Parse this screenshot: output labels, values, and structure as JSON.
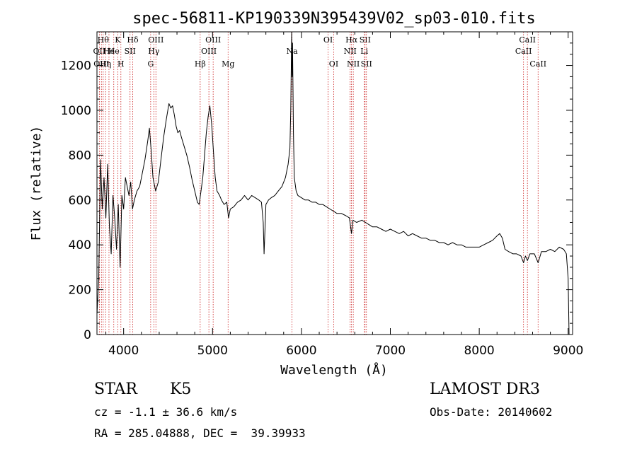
{
  "chart_data": {
    "type": "line",
    "title": "spec-56811-KP190339N395439V02_sp03-010.fits",
    "xlabel": "Wavelength (Å)",
    "ylabel": "Flux (relative)",
    "xlim": [
      3700,
      9050
    ],
    "ylim": [
      0,
      1350
    ],
    "x_ticks": [
      4000,
      5000,
      6000,
      7000,
      8000,
      9000
    ],
    "y_ticks": [
      0,
      200,
      400,
      600,
      800,
      1000,
      1200
    ],
    "series": [
      {
        "color": "#000000",
        "points": [
          [
            3700,
            90
          ],
          [
            3720,
            250
          ],
          [
            3740,
            780
          ],
          [
            3760,
            560
          ],
          [
            3780,
            700
          ],
          [
            3800,
            520
          ],
          [
            3820,
            760
          ],
          [
            3840,
            480
          ],
          [
            3860,
            360
          ],
          [
            3880,
            620
          ],
          [
            3900,
            520
          ],
          [
            3920,
            380
          ],
          [
            3940,
            580
          ],
          [
            3960,
            300
          ],
          [
            3980,
            620
          ],
          [
            4000,
            560
          ],
          [
            4020,
            700
          ],
          [
            4040,
            660
          ],
          [
            4060,
            620
          ],
          [
            4080,
            680
          ],
          [
            4100,
            560
          ],
          [
            4120,
            600
          ],
          [
            4150,
            640
          ],
          [
            4180,
            660
          ],
          [
            4210,
            720
          ],
          [
            4240,
            780
          ],
          [
            4270,
            860
          ],
          [
            4290,
            920
          ],
          [
            4310,
            820
          ],
          [
            4330,
            700
          ],
          [
            4360,
            640
          ],
          [
            4390,
            680
          ],
          [
            4420,
            780
          ],
          [
            4450,
            880
          ],
          [
            4480,
            960
          ],
          [
            4510,
            1030
          ],
          [
            4530,
            1010
          ],
          [
            4550,
            1020
          ],
          [
            4570,
            980
          ],
          [
            4590,
            930
          ],
          [
            4610,
            900
          ],
          [
            4630,
            910
          ],
          [
            4650,
            880
          ],
          [
            4680,
            840
          ],
          [
            4710,
            800
          ],
          [
            4740,
            750
          ],
          [
            4770,
            690
          ],
          [
            4800,
            640
          ],
          [
            4830,
            590
          ],
          [
            4850,
            580
          ],
          [
            4870,
            640
          ],
          [
            4890,
            700
          ],
          [
            4910,
            800
          ],
          [
            4930,
            900
          ],
          [
            4950,
            970
          ],
          [
            4970,
            1020
          ],
          [
            4990,
            940
          ],
          [
            5010,
            820
          ],
          [
            5030,
            700
          ],
          [
            5050,
            640
          ],
          [
            5080,
            620
          ],
          [
            5100,
            600
          ],
          [
            5130,
            580
          ],
          [
            5160,
            590
          ],
          [
            5180,
            520
          ],
          [
            5200,
            560
          ],
          [
            5240,
            570
          ],
          [
            5280,
            590
          ],
          [
            5320,
            600
          ],
          [
            5360,
            620
          ],
          [
            5400,
            600
          ],
          [
            5440,
            620
          ],
          [
            5480,
            610
          ],
          [
            5520,
            600
          ],
          [
            5550,
            590
          ],
          [
            5570,
            500
          ],
          [
            5580,
            360
          ],
          [
            5600,
            580
          ],
          [
            5630,
            600
          ],
          [
            5660,
            610
          ],
          [
            5700,
            620
          ],
          [
            5740,
            640
          ],
          [
            5780,
            660
          ],
          [
            5820,
            700
          ],
          [
            5850,
            760
          ],
          [
            5870,
            830
          ],
          [
            5880,
            1000
          ],
          [
            5890,
            1350
          ],
          [
            5895,
            1150
          ],
          [
            5900,
            1300
          ],
          [
            5910,
            900
          ],
          [
            5920,
            700
          ],
          [
            5940,
            640
          ],
          [
            5960,
            620
          ],
          [
            6000,
            610
          ],
          [
            6040,
            600
          ],
          [
            6080,
            600
          ],
          [
            6120,
            590
          ],
          [
            6160,
            590
          ],
          [
            6200,
            580
          ],
          [
            6240,
            580
          ],
          [
            6280,
            570
          ],
          [
            6320,
            560
          ],
          [
            6360,
            550
          ],
          [
            6400,
            540
          ],
          [
            6450,
            540
          ],
          [
            6500,
            530
          ],
          [
            6540,
            520
          ],
          [
            6563,
            450
          ],
          [
            6580,
            510
          ],
          [
            6620,
            500
          ],
          [
            6680,
            510
          ],
          [
            6720,
            500
          ],
          [
            6760,
            490
          ],
          [
            6800,
            480
          ],
          [
            6850,
            480
          ],
          [
            6900,
            470
          ],
          [
            6950,
            460
          ],
          [
            7000,
            470
          ],
          [
            7050,
            460
          ],
          [
            7100,
            450
          ],
          [
            7150,
            460
          ],
          [
            7200,
            440
          ],
          [
            7250,
            450
          ],
          [
            7300,
            440
          ],
          [
            7350,
            430
          ],
          [
            7400,
            430
          ],
          [
            7450,
            420
          ],
          [
            7500,
            420
          ],
          [
            7550,
            410
          ],
          [
            7600,
            410
          ],
          [
            7650,
            400
          ],
          [
            7700,
            410
          ],
          [
            7750,
            400
          ],
          [
            7800,
            400
          ],
          [
            7850,
            390
          ],
          [
            7900,
            390
          ],
          [
            7950,
            390
          ],
          [
            8000,
            390
          ],
          [
            8050,
            400
          ],
          [
            8100,
            410
          ],
          [
            8150,
            420
          ],
          [
            8200,
            440
          ],
          [
            8230,
            450
          ],
          [
            8260,
            430
          ],
          [
            8290,
            380
          ],
          [
            8330,
            370
          ],
          [
            8380,
            360
          ],
          [
            8420,
            360
          ],
          [
            8470,
            350
          ],
          [
            8498,
            320
          ],
          [
            8520,
            350
          ],
          [
            8542,
            330
          ],
          [
            8570,
            360
          ],
          [
            8620,
            360
          ],
          [
            8662,
            320
          ],
          [
            8700,
            370
          ],
          [
            8750,
            370
          ],
          [
            8800,
            380
          ],
          [
            8850,
            370
          ],
          [
            8900,
            390
          ],
          [
            8950,
            380
          ],
          [
            8980,
            360
          ],
          [
            9000,
            250
          ],
          [
            9010,
            0
          ]
        ]
      }
    ],
    "line_markers": [
      {
        "wl": 3727,
        "label": "OII",
        "row": 2
      },
      {
        "wl": 3750,
        "label": "OIII",
        "row": 3
      },
      {
        "wl": 3770,
        "label": "Hθ",
        "row": 1
      },
      {
        "wl": 3797,
        "label": "Hη",
        "row": 3
      },
      {
        "wl": 3835,
        "label": "He",
        "row": 2
      },
      {
        "wl": 3889,
        "label": "He",
        "row": 2
      },
      {
        "wl": 3934,
        "label": "K",
        "row": 1
      },
      {
        "wl": 3969,
        "label": "H",
        "row": 3
      },
      {
        "wl": 4072,
        "label": "SII",
        "row": 2
      },
      {
        "wl": 4102,
        "label": "Hδ",
        "row": 1
      },
      {
        "wl": 4304,
        "label": "G",
        "row": 3
      },
      {
        "wl": 4340,
        "label": "Hγ",
        "row": 2
      },
      {
        "wl": 4363,
        "label": "OIII",
        "row": 1
      },
      {
        "wl": 4861,
        "label": "Hβ",
        "row": 3
      },
      {
        "wl": 4959,
        "label": "OIII",
        "row": 2
      },
      {
        "wl": 5007,
        "label": "OIII",
        "row": 1
      },
      {
        "wl": 5175,
        "label": "Mg",
        "row": 3
      },
      {
        "wl": 5894,
        "label": "Na",
        "row": 2
      },
      {
        "wl": 6300,
        "label": "OI",
        "row": 1
      },
      {
        "wl": 6363,
        "label": "OI",
        "row": 3
      },
      {
        "wl": 6548,
        "label": "NII",
        "row": 2
      },
      {
        "wl": 6563,
        "label": "Hα",
        "row": 1
      },
      {
        "wl": 6583,
        "label": "NII",
        "row": 3
      },
      {
        "wl": 6707,
        "label": "Li",
        "row": 2
      },
      {
        "wl": 6716,
        "label": "SII",
        "row": 1
      },
      {
        "wl": 6731,
        "label": "SII",
        "row": 3
      },
      {
        "wl": 8498,
        "label": "CaII",
        "row": 2
      },
      {
        "wl": 8542,
        "label": "CaII",
        "row": 1
      },
      {
        "wl": 8662,
        "label": "CaII",
        "row": 3
      }
    ]
  },
  "info": {
    "class_label": "STAR",
    "subclass": "K5",
    "cz_text": "cz = -1.1 ± 36.6 km/s",
    "coords_text": "RA = 285.04888, DEC =  39.39933",
    "survey": "LAMOST DR3",
    "obs_date_text": "Obs-Date: 20140602"
  }
}
